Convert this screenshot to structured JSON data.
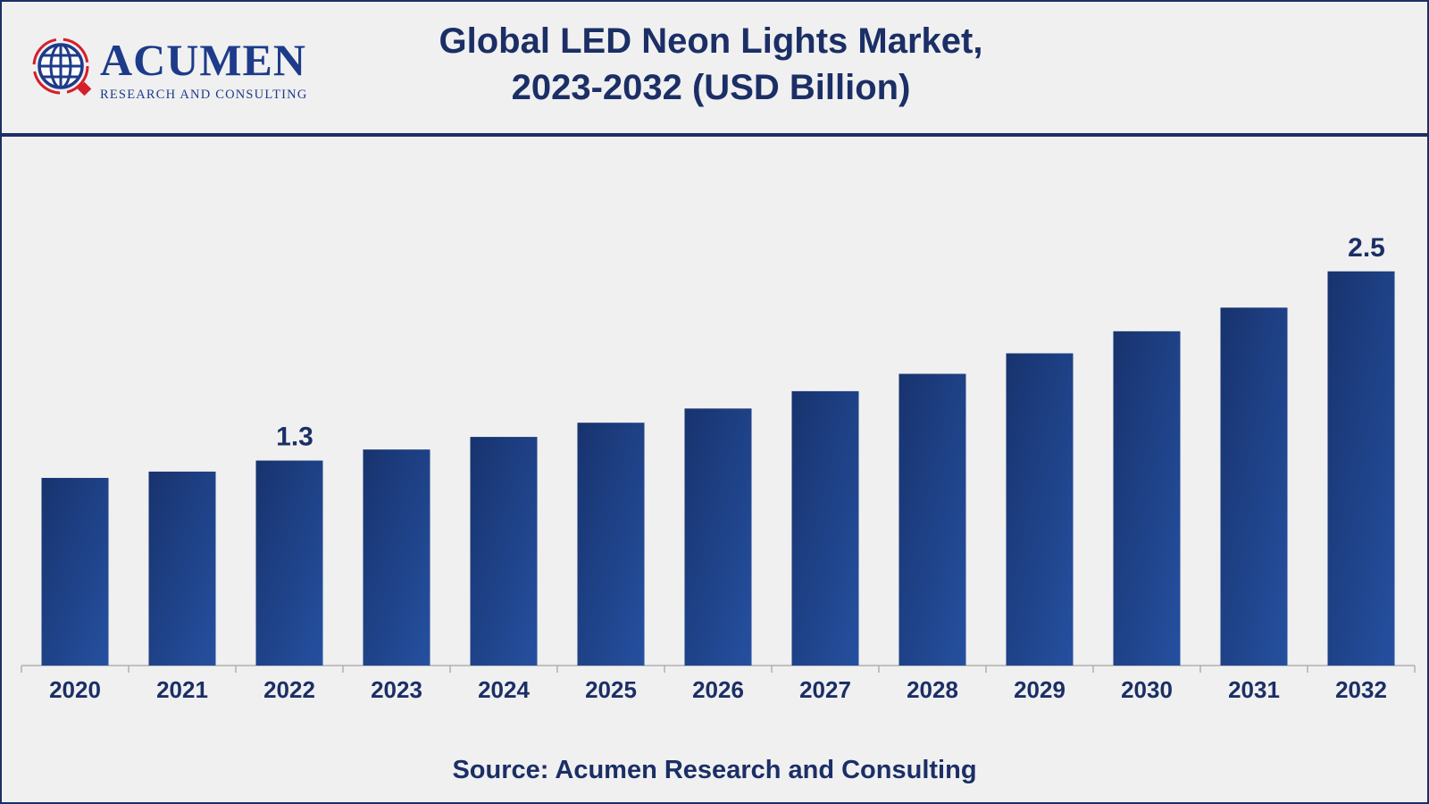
{
  "header": {
    "title_line1": "Global LED Neon Lights Market,",
    "title_line2": "2023-2032 (USD Billion)",
    "logo_text": "ACUMEN",
    "logo_subtext": "RESEARCH AND CONSULTING"
  },
  "source": "Source: Acumen Research and Consulting",
  "colors": {
    "bar": "#1f4590",
    "bar_dark": "#18336e",
    "text": "#1b2f66",
    "logo_red": "#d4202a",
    "background": "#f0f0f0"
  },
  "chart_data": {
    "type": "bar",
    "title": "Global LED Neon Lights Market, 2023-2032 (USD Billion)",
    "categories": [
      "2020",
      "2021",
      "2022",
      "2023",
      "2024",
      "2025",
      "2026",
      "2027",
      "2028",
      "2029",
      "2030",
      "2031",
      "2032"
    ],
    "values": [
      1.19,
      1.23,
      1.3,
      1.37,
      1.45,
      1.54,
      1.63,
      1.74,
      1.85,
      1.98,
      2.12,
      2.27,
      2.5
    ],
    "data_labels": {
      "2022": "1.3",
      "2032": "2.5"
    },
    "xlabel": "",
    "ylabel": "",
    "ylim": [
      0,
      2.9
    ],
    "grid": false,
    "legend": "none"
  }
}
